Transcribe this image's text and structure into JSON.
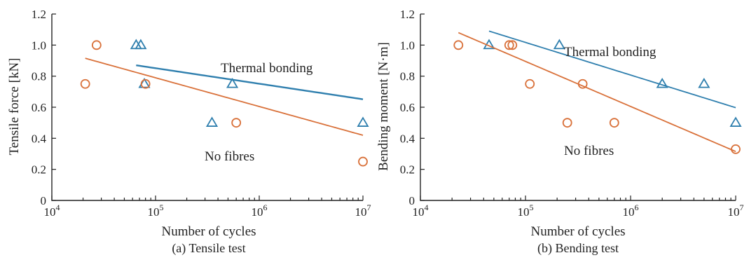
{
  "chart_data": [
    {
      "type": "scatter",
      "caption": "(a) Tensile test",
      "xlabel": "Number of cycles",
      "ylabel": "Tensile force [kN]",
      "xscale": "log",
      "xlim": [
        10000,
        10000000
      ],
      "ylim": [
        0,
        1.2
      ],
      "x_ticks": [
        {
          "base": "10",
          "exp": "4",
          "value": 10000
        },
        {
          "base": "10",
          "exp": "5",
          "value": 100000
        },
        {
          "base": "10",
          "exp": "6",
          "value": 1000000
        },
        {
          "base": "10",
          "exp": "7",
          "value": 10000000
        }
      ],
      "y_ticks": [
        "0",
        "0.2",
        "0.4",
        "0.6",
        "0.8",
        "1.0",
        "1.2"
      ],
      "y_tick_values": [
        0,
        0.2,
        0.4,
        0.6,
        0.8,
        1.0,
        1.2
      ],
      "series": [
        {
          "name": "Thermal bonding",
          "color": "#2f7fae",
          "marker": "triangle",
          "points": [
            [
              65000,
              1.0
            ],
            [
              72000,
              1.0
            ],
            [
              78000,
              0.75
            ],
            [
              350000,
              0.5
            ],
            [
              550000,
              0.75
            ],
            [
              10000000,
              0.5
            ]
          ],
          "fit": {
            "a": 0.87,
            "b": 0.1,
            "x0": 65000,
            "x1": 10000000
          }
        },
        {
          "name": "No fibres",
          "color": "#d9713a",
          "marker": "circle",
          "points": [
            [
              21000,
              0.75
            ],
            [
              27000,
              1.0
            ],
            [
              80000,
              0.75
            ],
            [
              600000,
              0.5
            ],
            [
              10000000,
              0.25
            ]
          ],
          "fit": {
            "a": 0.915,
            "b": 0.185,
            "x0": 21000,
            "x1": 10000000
          }
        }
      ]
    },
    {
      "type": "scatter",
      "caption": "(b) Bending test",
      "xlabel": "Number of cycles",
      "ylabel": "Bending moment [N·m]",
      "xscale": "log",
      "xlim": [
        10000,
        10000000
      ],
      "ylim": [
        0,
        1.2
      ],
      "x_ticks": [
        {
          "base": "10",
          "exp": "4",
          "value": 10000
        },
        {
          "base": "10",
          "exp": "5",
          "value": 100000
        },
        {
          "base": "10",
          "exp": "6",
          "value": 1000000
        },
        {
          "base": "10",
          "exp": "7",
          "value": 10000000
        }
      ],
      "y_ticks": [
        "0",
        "0.2",
        "0.4",
        "0.6",
        "0.8",
        "1.0",
        "1.2"
      ],
      "y_tick_values": [
        0,
        0.2,
        0.4,
        0.6,
        0.8,
        1.0,
        1.2
      ],
      "series": [
        {
          "name": "Thermal bonding",
          "color": "#2f7fae",
          "marker": "triangle",
          "points": [
            [
              45000,
              1.0
            ],
            [
              210000,
              1.0
            ],
            [
              2000000,
              0.75
            ],
            [
              5000000,
              0.75
            ],
            [
              10000000,
              0.5
            ]
          ],
          "fit": {
            "a": 1.09,
            "b": 0.21,
            "x0": 45000,
            "x1": 10000000
          }
        },
        {
          "name": "No fibres",
          "color": "#d9713a",
          "marker": "circle",
          "points": [
            [
              23000,
              1.0
            ],
            [
              70000,
              1.0
            ],
            [
              75000,
              1.0
            ],
            [
              110000,
              0.75
            ],
            [
              250000,
              0.5
            ],
            [
              350000,
              0.75
            ],
            [
              700000,
              0.5
            ],
            [
              10000000,
              0.33
            ]
          ],
          "fit": {
            "a": 1.08,
            "b": 0.29,
            "x0": 23000,
            "x1": 10000000
          }
        }
      ]
    }
  ]
}
